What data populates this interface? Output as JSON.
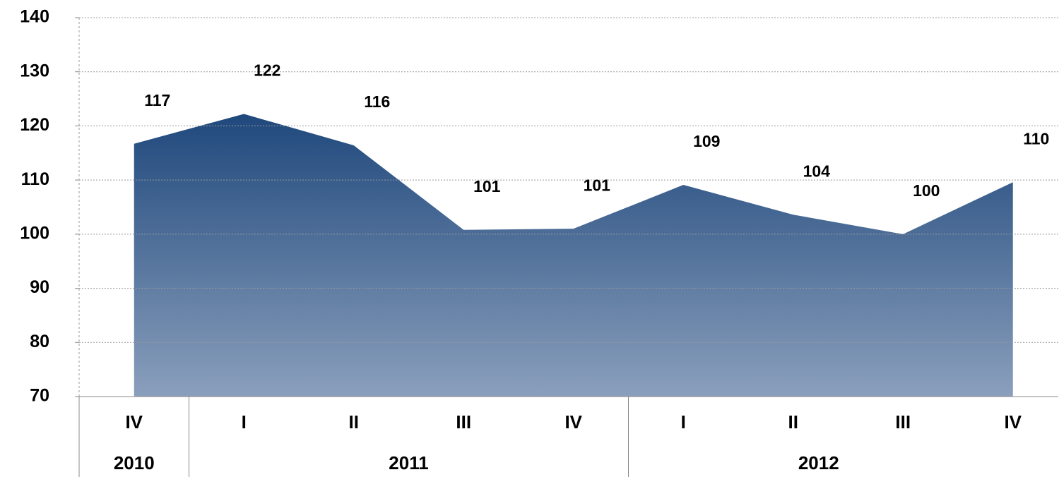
{
  "chart_data": {
    "type": "area",
    "categories": [
      "IV",
      "I",
      "II",
      "III",
      "IV",
      "I",
      "II",
      "III",
      "IV"
    ],
    "years": [
      "2010",
      "2011",
      null,
      null,
      null,
      "2012",
      null,
      null,
      null
    ],
    "values": [
      116.7,
      122.2,
      116.4,
      100.8,
      101.0,
      109.1,
      103.6,
      100.0,
      109.6
    ],
    "value_labels": [
      "117",
      "122",
      "116",
      "101",
      "101",
      "109",
      "104",
      "100",
      "110"
    ],
    "color_top": "#1f487c",
    "color_bottom": "#8a9fbc",
    "ylim": [
      70,
      140
    ],
    "yticks": [
      70,
      80,
      90,
      100,
      110,
      120,
      130,
      140
    ],
    "grid": true
  }
}
